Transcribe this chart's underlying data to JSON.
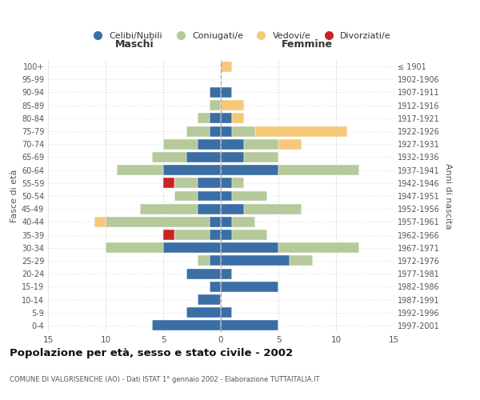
{
  "age_groups": [
    "0-4",
    "5-9",
    "10-14",
    "15-19",
    "20-24",
    "25-29",
    "30-34",
    "35-39",
    "40-44",
    "45-49",
    "50-54",
    "55-59",
    "60-64",
    "65-69",
    "70-74",
    "75-79",
    "80-84",
    "85-89",
    "90-94",
    "95-99",
    "100+"
  ],
  "birth_years": [
    "1997-2001",
    "1992-1996",
    "1987-1991",
    "1982-1986",
    "1977-1981",
    "1972-1976",
    "1967-1971",
    "1962-1966",
    "1957-1961",
    "1952-1956",
    "1947-1951",
    "1942-1946",
    "1937-1941",
    "1932-1936",
    "1927-1931",
    "1922-1926",
    "1917-1921",
    "1912-1916",
    "1907-1911",
    "1902-1906",
    "≤ 1901"
  ],
  "male": {
    "celibi": [
      6,
      3,
      2,
      1,
      3,
      1,
      5,
      1,
      1,
      2,
      2,
      2,
      5,
      3,
      2,
      1,
      1,
      0,
      1,
      0,
      0
    ],
    "coniugati": [
      0,
      0,
      0,
      0,
      0,
      1,
      5,
      3,
      9,
      5,
      2,
      2,
      4,
      3,
      3,
      2,
      1,
      1,
      0,
      0,
      0
    ],
    "vedovi": [
      0,
      0,
      0,
      0,
      0,
      0,
      0,
      0,
      1,
      0,
      0,
      0,
      0,
      0,
      0,
      0,
      0,
      0,
      0,
      0,
      0
    ],
    "divorziati": [
      0,
      0,
      0,
      0,
      0,
      0,
      0,
      1,
      0,
      0,
      0,
      1,
      0,
      0,
      0,
      0,
      0,
      0,
      0,
      0,
      0
    ]
  },
  "female": {
    "nubili": [
      5,
      1,
      0,
      5,
      1,
      6,
      5,
      1,
      1,
      2,
      1,
      1,
      5,
      2,
      2,
      1,
      1,
      0,
      1,
      0,
      0
    ],
    "coniugate": [
      0,
      0,
      0,
      0,
      0,
      2,
      7,
      3,
      2,
      5,
      3,
      1,
      7,
      3,
      3,
      2,
      0,
      0,
      0,
      0,
      0
    ],
    "vedove": [
      0,
      0,
      0,
      0,
      0,
      0,
      0,
      0,
      0,
      0,
      0,
      0,
      0,
      0,
      2,
      8,
      1,
      2,
      0,
      0,
      1
    ],
    "divorziate": [
      0,
      0,
      0,
      0,
      0,
      0,
      0,
      0,
      0,
      0,
      0,
      0,
      0,
      0,
      0,
      0,
      0,
      0,
      0,
      0,
      0
    ]
  },
  "colors": {
    "celibi": "#3a6ea5",
    "coniugati": "#b5c99a",
    "vedovi": "#f5c97a",
    "divorziati": "#cc2222"
  },
  "xlim": 15,
  "title": "Popolazione per età, sesso e stato civile - 2002",
  "subtitle": "COMUNE DI VALGRISENCHE (AO) - Dati ISTAT 1° gennaio 2002 - Elaborazione TUTTAITALIA.IT",
  "xlabel_left": "Maschi",
  "xlabel_right": "Femmine",
  "ylabel_left": "Fasce di età",
  "ylabel_right": "Anni di nascita",
  "legend_labels": [
    "Celibi/Nubili",
    "Coniugati/e",
    "Vedovi/e",
    "Divorziati/e"
  ],
  "bg_color": "#ffffff",
  "grid_color": "#cccccc"
}
